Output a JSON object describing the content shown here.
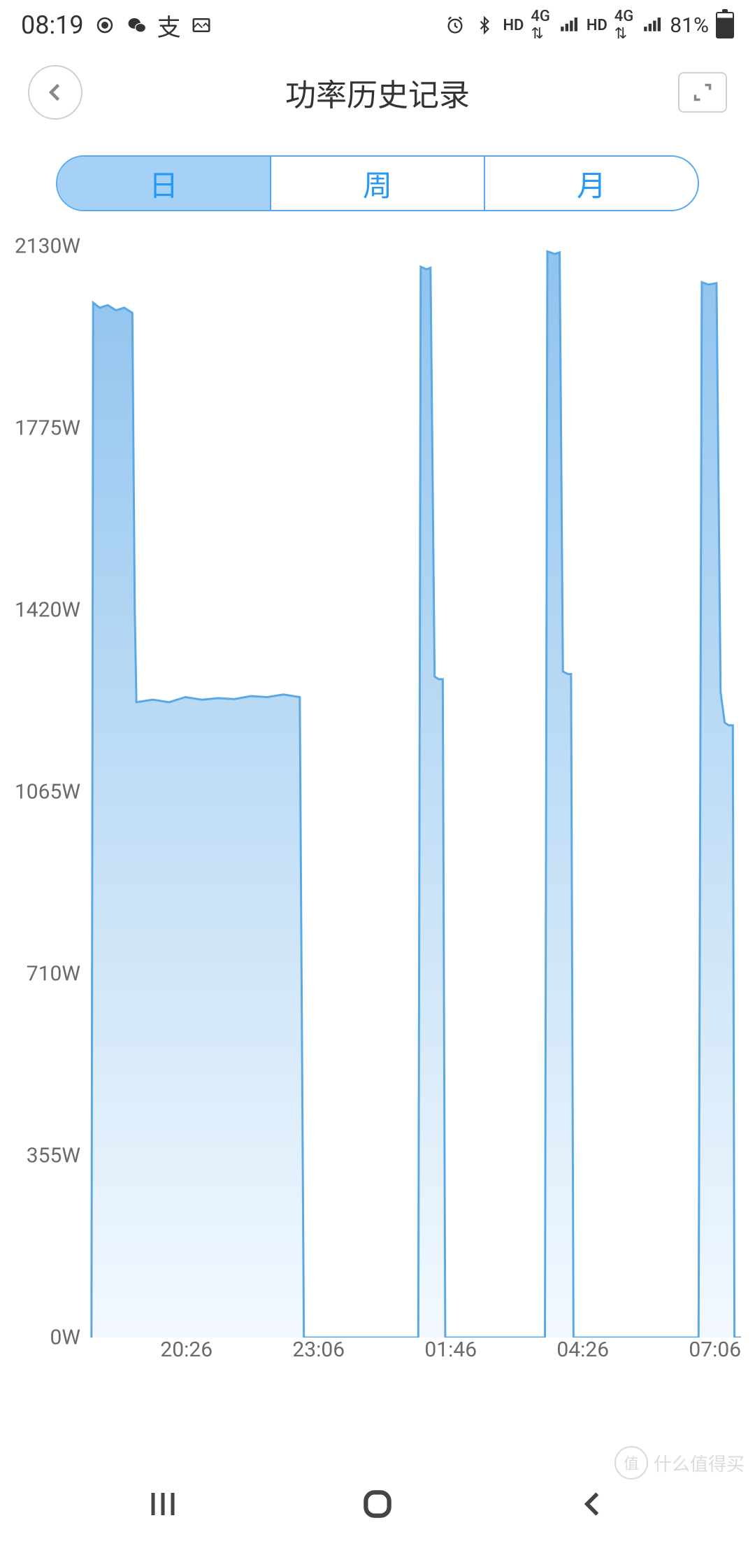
{
  "statusBar": {
    "time": "08:19",
    "batteryPercent": "81%",
    "icons": [
      "podcast",
      "wechat",
      "alipay",
      "gallery",
      "alarm",
      "bluetooth",
      "hd1",
      "4g1",
      "signal1",
      "hd2",
      "4g2",
      "signal2"
    ]
  },
  "header": {
    "title": "功率历史记录"
  },
  "tabs": {
    "items": [
      "日",
      "周",
      "月"
    ],
    "activeIndex": 0
  },
  "chart": {
    "type": "area",
    "ylim": [
      0,
      2130
    ],
    "yticks": [
      0,
      355,
      710,
      1065,
      1420,
      1775,
      2130
    ],
    "yticklabels": [
      "0W",
      "355W",
      "710W",
      "1065W",
      "1420W",
      "1775W",
      "2130W"
    ],
    "yunit": "W",
    "xticks": [
      120,
      280,
      440,
      600,
      760
    ],
    "xticklabels": [
      "20:26",
      "23:06",
      "01:46",
      "04:26",
      "07:06"
    ],
    "xrange": [
      0,
      800
    ],
    "stroke_color": "#5aa9e6",
    "stroke_width": 3,
    "fill_gradient_top": "#8fc3ee",
    "fill_gradient_bottom": "#f3f9fe",
    "background_color": "#ffffff",
    "axis_label_color": "#6a6a6a",
    "axis_label_fontsize": 30,
    "data": [
      [
        5,
        0
      ],
      [
        7,
        2020
      ],
      [
        15,
        2010
      ],
      [
        25,
        2015
      ],
      [
        35,
        2005
      ],
      [
        45,
        2010
      ],
      [
        55,
        2000
      ],
      [
        58,
        1420
      ],
      [
        60,
        1240
      ],
      [
        80,
        1245
      ],
      [
        100,
        1240
      ],
      [
        120,
        1250
      ],
      [
        140,
        1245
      ],
      [
        160,
        1248
      ],
      [
        180,
        1246
      ],
      [
        200,
        1252
      ],
      [
        220,
        1250
      ],
      [
        240,
        1255
      ],
      [
        260,
        1250
      ],
      [
        265,
        0
      ],
      [
        405,
        0
      ],
      [
        408,
        2090
      ],
      [
        415,
        2085
      ],
      [
        420,
        2088
      ],
      [
        425,
        1290
      ],
      [
        430,
        1285
      ],
      [
        435,
        1285
      ],
      [
        438,
        0
      ],
      [
        560,
        0
      ],
      [
        563,
        2120
      ],
      [
        572,
        2115
      ],
      [
        578,
        2118
      ],
      [
        582,
        1300
      ],
      [
        588,
        1295
      ],
      [
        592,
        1295
      ],
      [
        595,
        0
      ],
      [
        748,
        0
      ],
      [
        752,
        2060
      ],
      [
        760,
        2055
      ],
      [
        770,
        2058
      ],
      [
        775,
        1260
      ],
      [
        780,
        1200
      ],
      [
        785,
        1195
      ],
      [
        790,
        1195
      ],
      [
        792,
        0
      ],
      [
        800,
        0
      ]
    ]
  },
  "watermark": {
    "symbol": "值",
    "text": "什么值得买"
  }
}
